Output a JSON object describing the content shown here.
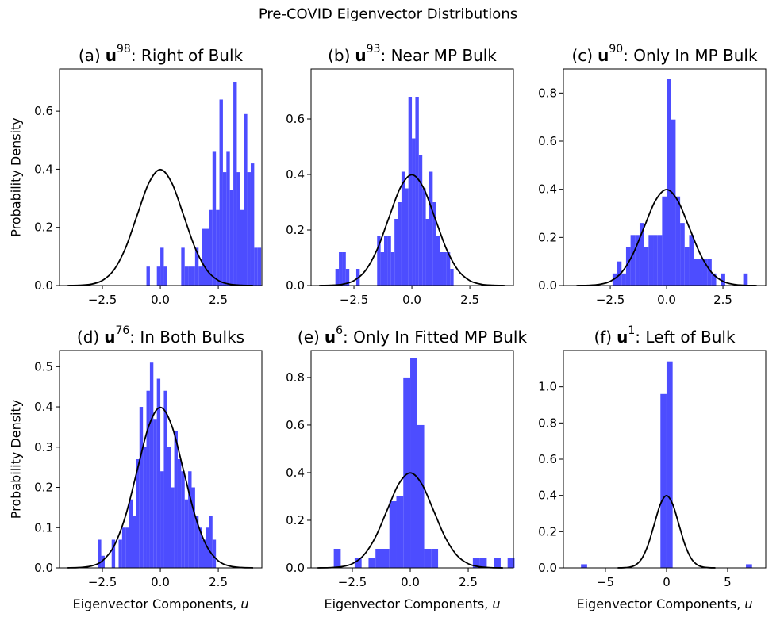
{
  "title": "Pre-COVID Eigenvector Distributions",
  "chart_data": [
    {
      "type": "histogram",
      "title": {
        "label": "(a)",
        "symbol": "u",
        "exponent": "98",
        "text": ": Right of Bulk"
      },
      "ylabel": "Probability Density",
      "color": "#4d4dff",
      "bins": [
        -0.6,
        -0.45,
        -0.3,
        -0.15,
        0,
        0.15,
        0.3,
        0.45,
        0.6,
        0.75,
        0.9,
        1.05,
        1.2,
        1.35,
        1.5,
        1.65,
        1.8,
        1.95,
        2.1,
        2.25,
        2.4,
        2.55,
        2.7,
        2.85,
        3,
        3.15,
        3.3,
        3.45,
        3.6,
        3.75,
        3.9,
        4.05,
        4.2,
        4.35
      ],
      "values": [
        0.065,
        0,
        0,
        0.065,
        0.13,
        0.065,
        0,
        0,
        0,
        0,
        0.13,
        0.065,
        0.065,
        0.065,
        0.13,
        0.065,
        0.195,
        0.195,
        0.26,
        0.46,
        0.26,
        0.64,
        0.39,
        0.46,
        0.33,
        0.7,
        0.39,
        0.26,
        0.59,
        0.39,
        0.42,
        0.13,
        0.13
      ],
      "curve": {
        "color": "#000000",
        "x": [
          -4,
          -3.5,
          -3,
          -2.5,
          -2,
          -1.5,
          -1,
          -0.5,
          0,
          0.5,
          1,
          1.5,
          2,
          2.5,
          3,
          3.5,
          4
        ],
        "values": [
          0.0001,
          0.0009,
          0.0044,
          0.0175,
          0.054,
          0.1295,
          0.242,
          0.3521,
          0.3989,
          0.3521,
          0.242,
          0.1295,
          0.054,
          0.0175,
          0.0044,
          0.0009,
          0.0001
        ]
      },
      "xlim": [
        -4.35,
        4.38
      ],
      "ylim": [
        0,
        0.745
      ],
      "xticks": [
        {
          "value": -2.5,
          "label": "−2.5"
        },
        {
          "value": 0,
          "label": "0.0"
        },
        2.5
      ],
      "yticks": [
        {
          "value": 0,
          "label": "0.0"
        },
        0.2,
        0.4,
        0.6
      ]
    },
    {
      "type": "histogram",
      "title": {
        "label": "(b)",
        "symbol": "u",
        "exponent": "93",
        "text": ": Near MP Bulk"
      },
      "color": "#4d4dff",
      "bins": [
        -3.3,
        -3.15,
        -3,
        -2.85,
        -2.7,
        -2.55,
        -2.4,
        -2.25,
        -2.1,
        -1.95,
        -1.8,
        -1.65,
        -1.5,
        -1.35,
        -1.2,
        -1.05,
        -0.9,
        -0.75,
        -0.6,
        -0.45,
        -0.3,
        -0.15,
        0,
        0.15,
        0.3,
        0.45,
        0.6,
        0.75,
        0.9,
        1.05,
        1.2,
        1.35,
        1.5,
        1.65,
        1.8
      ],
      "values": [
        0.06,
        0.12,
        0.12,
        0.06,
        0,
        0,
        0.06,
        0,
        0,
        0,
        0,
        0,
        0.18,
        0.12,
        0.18,
        0.18,
        0.12,
        0.24,
        0.3,
        0.41,
        0.35,
        0.68,
        0.53,
        0.68,
        0.47,
        0.35,
        0.24,
        0.41,
        0.3,
        0.18,
        0.12,
        0.12,
        0.12,
        0.06
      ],
      "curve": {
        "color": "#000000",
        "x": [
          -4,
          -3.5,
          -3,
          -2.5,
          -2,
          -1.5,
          -1,
          -0.5,
          0,
          0.5,
          1,
          1.5,
          2,
          2.5,
          3,
          3.5,
          4
        ],
        "values": [
          0.0001,
          0.0009,
          0.0044,
          0.0175,
          0.054,
          0.1295,
          0.242,
          0.3521,
          0.3989,
          0.3521,
          0.242,
          0.1295,
          0.054,
          0.0175,
          0.0044,
          0.0009,
          0.0001
        ]
      },
      "xlim": [
        -4.35,
        4.38
      ],
      "ylim": [
        0,
        0.78
      ],
      "xticks": [
        {
          "value": -2.5,
          "label": "−2.5"
        },
        {
          "value": 0,
          "label": "0.0"
        },
        2.5
      ],
      "yticks": [
        {
          "value": 0,
          "label": "0.0"
        },
        0.2,
        0.4,
        0.6
      ]
    },
    {
      "type": "histogram",
      "title": {
        "label": "(c)",
        "symbol": "u",
        "exponent": "90",
        "text": ": Only In MP Bulk"
      },
      "color": "#4d4dff",
      "bins": [
        -2.4,
        -2.2,
        -2,
        -1.8,
        -1.6,
        -1.4,
        -1.2,
        -1,
        -0.8,
        -0.6,
        -0.4,
        -0.2,
        0,
        0.2,
        0.4,
        0.6,
        0.8,
        1,
        1.2,
        1.4,
        1.6,
        1.8,
        2,
        2.2,
        2.4,
        2.6,
        2.8,
        3,
        3.2,
        3.4,
        3.6
      ],
      "values": [
        0.05,
        0.1,
        0.05,
        0.16,
        0.21,
        0.21,
        0.26,
        0.16,
        0.21,
        0.21,
        0.21,
        0.37,
        0.86,
        0.69,
        0.37,
        0.26,
        0.16,
        0.21,
        0.11,
        0.11,
        0.11,
        0.11,
        0.05,
        0,
        0.05,
        0,
        0,
        0,
        0,
        0.05
      ],
      "curve": {
        "color": "#000000",
        "x": [
          -4,
          -3.5,
          -3,
          -2.5,
          -2,
          -1.5,
          -1,
          -0.5,
          0,
          0.5,
          1,
          1.5,
          2,
          2.5,
          3,
          3.5,
          4
        ],
        "values": [
          0.0001,
          0.0009,
          0.0044,
          0.0175,
          0.054,
          0.1295,
          0.242,
          0.3521,
          0.3989,
          0.3521,
          0.242,
          0.1295,
          0.054,
          0.0175,
          0.0044,
          0.0009,
          0.0001
        ]
      },
      "xlim": [
        -4.58,
        4.4
      ],
      "ylim": [
        0,
        0.9
      ],
      "xticks": [
        {
          "value": -2.5,
          "label": "−2.5"
        },
        {
          "value": 0,
          "label": "0.0"
        },
        2.5
      ],
      "yticks": [
        {
          "value": 0,
          "label": "0.0"
        },
        0.2,
        0.4,
        0.6,
        0.8
      ]
    },
    {
      "type": "histogram",
      "title": {
        "label": "(d)",
        "symbol": "u",
        "exponent": "76",
        "text": ": In Both Bulks"
      },
      "ylabel": "Probability Density",
      "xlabel": "Eigenvector Components,",
      "xlabel_symbol": "u",
      "color": "#4d4dff",
      "bins": [
        -2.7,
        -2.55,
        -2.4,
        -2.25,
        -2.1,
        -1.95,
        -1.8,
        -1.65,
        -1.5,
        -1.35,
        -1.2,
        -1.05,
        -0.9,
        -0.75,
        -0.6,
        -0.45,
        -0.3,
        -0.15,
        0,
        0.15,
        0.3,
        0.45,
        0.6,
        0.75,
        0.9,
        1.05,
        1.2,
        1.35,
        1.5,
        1.65,
        1.8,
        1.95,
        2.1,
        2.25,
        2.4
      ],
      "values": [
        0.07,
        0.03,
        0,
        0,
        0.07,
        0,
        0.07,
        0.1,
        0.1,
        0.17,
        0.13,
        0.27,
        0.4,
        0.3,
        0.44,
        0.51,
        0.37,
        0.47,
        0.24,
        0.44,
        0.3,
        0.2,
        0.34,
        0.27,
        0.24,
        0.17,
        0.24,
        0.2,
        0.13,
        0.1,
        0.07,
        0.1,
        0.13,
        0.07
      ],
      "curve": {
        "color": "#000000",
        "x": [
          -4,
          -3.5,
          -3,
          -2.5,
          -2,
          -1.5,
          -1,
          -0.5,
          0,
          0.5,
          1,
          1.5,
          2,
          2.5,
          3,
          3.5,
          4
        ],
        "values": [
          0.0001,
          0.0009,
          0.0044,
          0.0175,
          0.054,
          0.1295,
          0.242,
          0.3521,
          0.3989,
          0.3521,
          0.242,
          0.1295,
          0.054,
          0.0175,
          0.0044,
          0.0009,
          0.0001
        ]
      },
      "xlim": [
        -4.35,
        4.38
      ],
      "ylim": [
        0,
        0.54
      ],
      "xticks": [
        {
          "value": -2.5,
          "label": "−2.5"
        },
        {
          "value": 0,
          "label": "0.0"
        },
        2.5
      ],
      "yticks": [
        {
          "value": 0,
          "label": "0.0"
        },
        0.1,
        0.2,
        0.3,
        0.4,
        0.5
      ]
    },
    {
      "type": "histogram",
      "title": {
        "label": "(e)",
        "symbol": "u",
        "exponent": "6",
        "text": ": Only In Fitted MP Bulk"
      },
      "xlabel": "Eigenvector Components,",
      "xlabel_symbol": "u",
      "color": "#4d4dff",
      "bins": [
        -3.3,
        -3,
        -2.7,
        -2.4,
        -2.1,
        -1.8,
        -1.5,
        -1.2,
        -0.9,
        -0.6,
        -0.3,
        0,
        0.3,
        0.6,
        0.9,
        1.2,
        1.5,
        1.8,
        2.1,
        2.4,
        2.7,
        3,
        3.3,
        3.6,
        3.9,
        4.2,
        4.5
      ],
      "values": [
        0.08,
        0,
        0,
        0.04,
        0,
        0.04,
        0.08,
        0.08,
        0.28,
        0.3,
        0.8,
        0.88,
        0.6,
        0.08,
        0.08,
        0,
        0,
        0,
        0,
        0,
        0.04,
        0.04,
        0,
        0.04,
        0,
        0.04
      ],
      "curve": {
        "color": "#000000",
        "x": [
          -4,
          -3.5,
          -3,
          -2.5,
          -2,
          -1.5,
          -1,
          -0.5,
          0,
          0.5,
          1,
          1.5,
          2,
          2.5,
          3,
          3.5,
          4
        ],
        "values": [
          0.0001,
          0.0009,
          0.0044,
          0.0175,
          0.054,
          0.1295,
          0.242,
          0.3521,
          0.3989,
          0.3521,
          0.242,
          0.1295,
          0.054,
          0.0175,
          0.0044,
          0.0009,
          0.0001
        ]
      },
      "xlim": [
        -4.28,
        4.45
      ],
      "ylim": [
        0,
        0.913
      ],
      "xticks": [
        {
          "value": -2.5,
          "label": "−2.5"
        },
        {
          "value": 0,
          "label": "0.0"
        },
        2.5
      ],
      "yticks": [
        {
          "value": 0,
          "label": "0.0"
        },
        0.2,
        0.4,
        0.6,
        0.8
      ]
    },
    {
      "type": "histogram",
      "title": {
        "label": "(f)",
        "symbol": "u",
        "exponent": "1",
        "text": ": Left of Bulk"
      },
      "xlabel": "Eigenvector Components,",
      "xlabel_symbol": "u",
      "color": "#4d4dff",
      "bins": [
        -7,
        -6.5,
        -6,
        -5.5,
        -5,
        -4.5,
        -4,
        -3.5,
        -3,
        -2.5,
        -2,
        -1.5,
        -1,
        -0.5,
        0,
        0.5,
        1,
        1.5,
        2,
        2.5,
        3,
        3.5,
        4,
        4.5,
        5,
        5.5,
        6,
        6.5,
        7
      ],
      "values": [
        0.02,
        0,
        0,
        0,
        0,
        0,
        0,
        0,
        0,
        0,
        0,
        0,
        0,
        0.96,
        1.14,
        0,
        0,
        0,
        0,
        0,
        0,
        0,
        0,
        0,
        0,
        0,
        0,
        0.02
      ],
      "curve": {
        "color": "#000000",
        "x": [
          -4,
          -3.5,
          -3,
          -2.5,
          -2,
          -1.5,
          -1,
          -0.5,
          0,
          0.5,
          1,
          1.5,
          2,
          2.5,
          3,
          3.5,
          4
        ],
        "values": [
          0.0001,
          0.0009,
          0.0044,
          0.0175,
          0.054,
          0.1295,
          0.242,
          0.3521,
          0.3989,
          0.3521,
          0.242,
          0.1295,
          0.054,
          0.0175,
          0.0044,
          0.0009,
          0.0001
        ]
      },
      "xlim": [
        -8.44,
        8.12
      ],
      "ylim": [
        0,
        1.2
      ],
      "xticks": [
        {
          "value": -5,
          "label": "−5"
        },
        0,
        5
      ],
      "yticks": [
        {
          "value": 0,
          "label": "0.0"
        },
        0.2,
        0.4,
        0.6,
        0.8,
        {
          "value": 1,
          "label": "1.0"
        }
      ]
    }
  ]
}
